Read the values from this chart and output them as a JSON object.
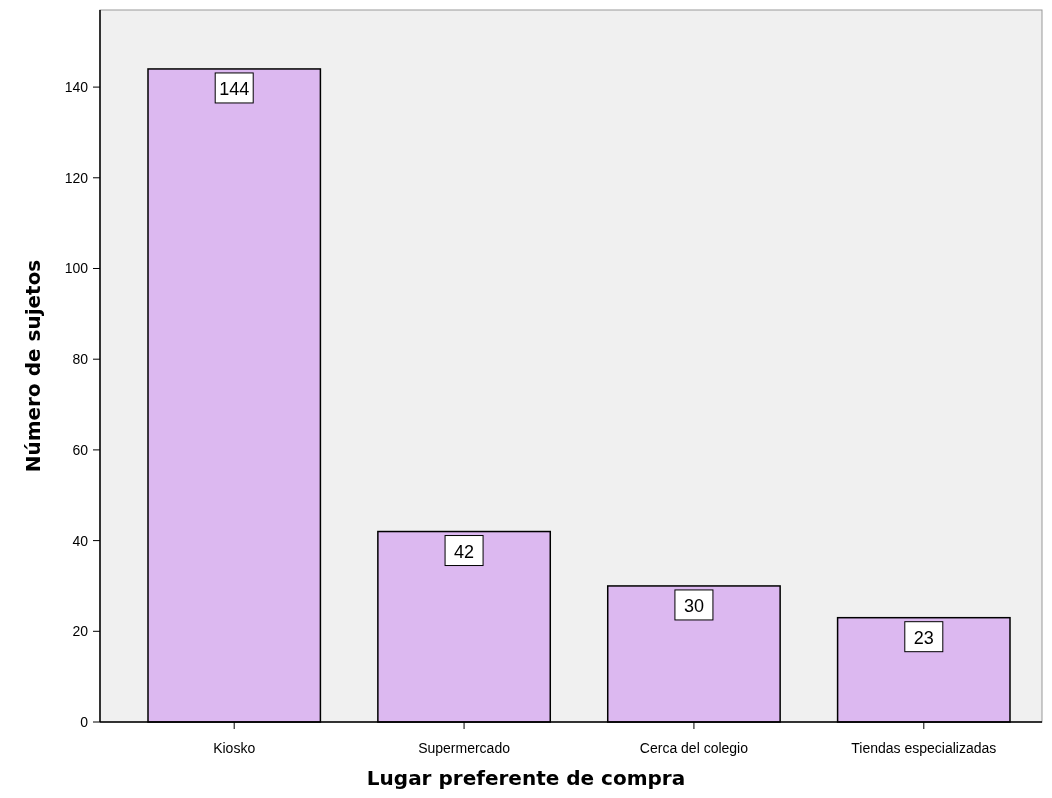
{
  "chart_data": {
    "type": "bar",
    "xlabel": "Lugar preferente de compra",
    "ylabel": "Número de sujetos",
    "categories": [
      "Kiosko",
      "Supermercado",
      "Cerca del colegio",
      "Tiendas especializadas"
    ],
    "values": [
      144,
      42,
      30,
      23
    ],
    "color": "#dcb8f0",
    "ylim": [
      0,
      157
    ],
    "yticks": [
      0,
      20,
      40,
      60,
      80,
      100,
      120,
      140
    ],
    "grid": false,
    "data_labels": true
  }
}
